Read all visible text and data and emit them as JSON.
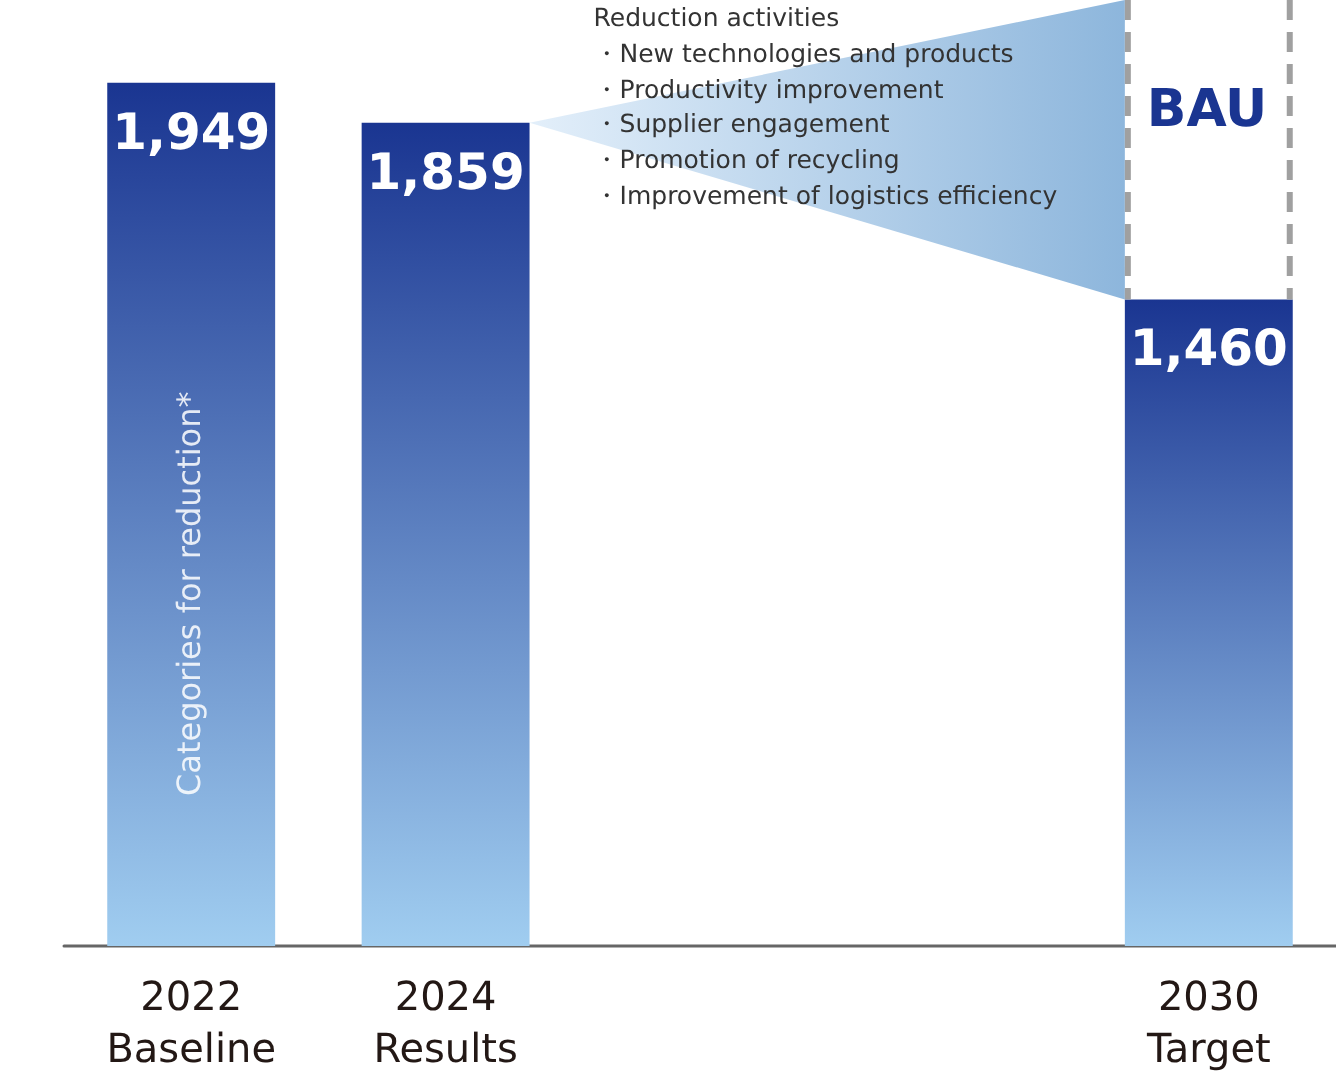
{
  "chart_data": {
    "type": "bar",
    "categories": [
      "2022\nBaseline",
      "2024\nResults",
      null,
      null,
      "2030\nTarget"
    ],
    "values": [
      1949,
      1859,
      null,
      null,
      1460
    ],
    "color": "#1a3591",
    "value_labels": [
      "1,949",
      "1,859",
      null,
      null,
      "1,460"
    ],
    "grid": false,
    "annotations": [
      "Categories for reduction*",
      "Reduction activities\n・New technologies and products\n・Productivity improvement\n・Supplier engagement\n・Promotion of recycling\n・Improvement of logistics efficiency",
      "BAU"
    ]
  }
}
